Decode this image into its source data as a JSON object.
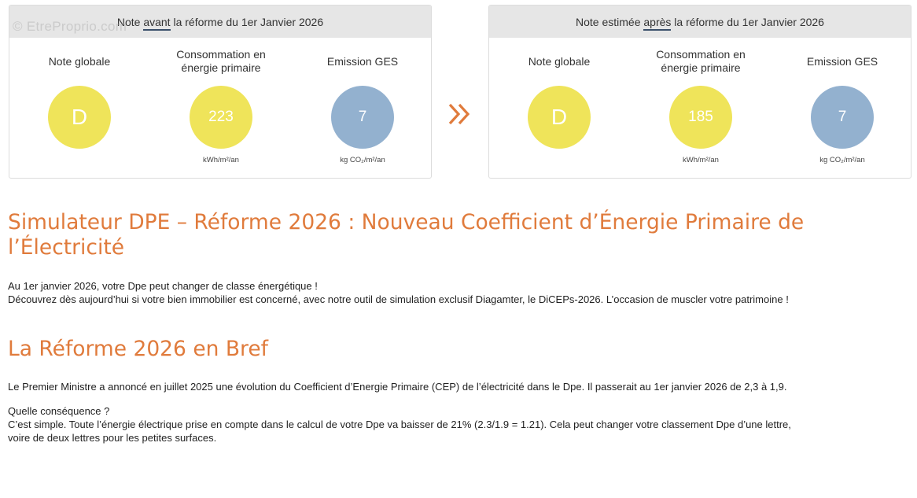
{
  "watermark": "© EtreProprio.com",
  "before_card": {
    "header_prefix": "Note ",
    "header_emph": "avant",
    "header_suffix": " la réforme du 1er Janvier 2026",
    "metrics": [
      {
        "label": "Note globale",
        "value": "D",
        "unit": "",
        "color": "#efe45a"
      },
      {
        "label_line1": "Consommation en",
        "label_line2": "énergie primaire",
        "value": "223",
        "unit": "kWh/m²/an",
        "color": "#efe45a"
      },
      {
        "label": "Emission GES",
        "value": "7",
        "unit": "kg CO₂/m²/an",
        "color": "#93b1cf"
      }
    ]
  },
  "after_card": {
    "header_prefix": "Note estimée ",
    "header_emph": "après",
    "header_suffix": " la réforme du 1er Janvier 2026",
    "metrics": [
      {
        "label": "Note globale",
        "value": "D",
        "unit": "",
        "color": "#efe45a"
      },
      {
        "label_line1": "Consommation en",
        "label_line2": "énergie primaire",
        "value": "185",
        "unit": "kWh/m²/an",
        "color": "#efe45a"
      },
      {
        "label": "Emission GES",
        "value": "7",
        "unit": "kg CO₂/m²/an",
        "color": "#93b1cf"
      }
    ]
  },
  "arrow_icon": "double-chevron-right-icon",
  "accent_color": "#e07b3c",
  "main": {
    "title": "Simulateur DPE – Réforme 2026 : Nouveau Coefficient d’Énergie Primaire de l’Électricité",
    "intro_line1": "Au 1er janvier 2026, votre Dpe peut changer de classe énergétique !",
    "intro_line2": "Découvrez dès aujourd’hui si votre bien immobilier est concerné, avec notre outil de simulation exclusif Diagamter, le DiCEPs-2026. L’occasion de muscler votre patrimoine !",
    "section_title": "La Réforme 2026 en Bref",
    "section_para": "Le Premier Ministre a annoncé en juillet 2025 une évolution du Coefficient d’Energie Primaire (CEP) de l’électricité dans le Dpe. Il passerait au 1er janvier 2026 de 2,3 à 1,9.",
    "question": "Quelle conséquence ?",
    "answer_line1": "C’est simple. Toute l’énergie électrique prise en compte dans le calcul de votre Dpe va baisser de 21% (2.3/1.9 = 1.21). Cela peut changer votre classement Dpe d’une lettre,",
    "answer_line2": "voire de deux lettres pour les petites surfaces."
  }
}
